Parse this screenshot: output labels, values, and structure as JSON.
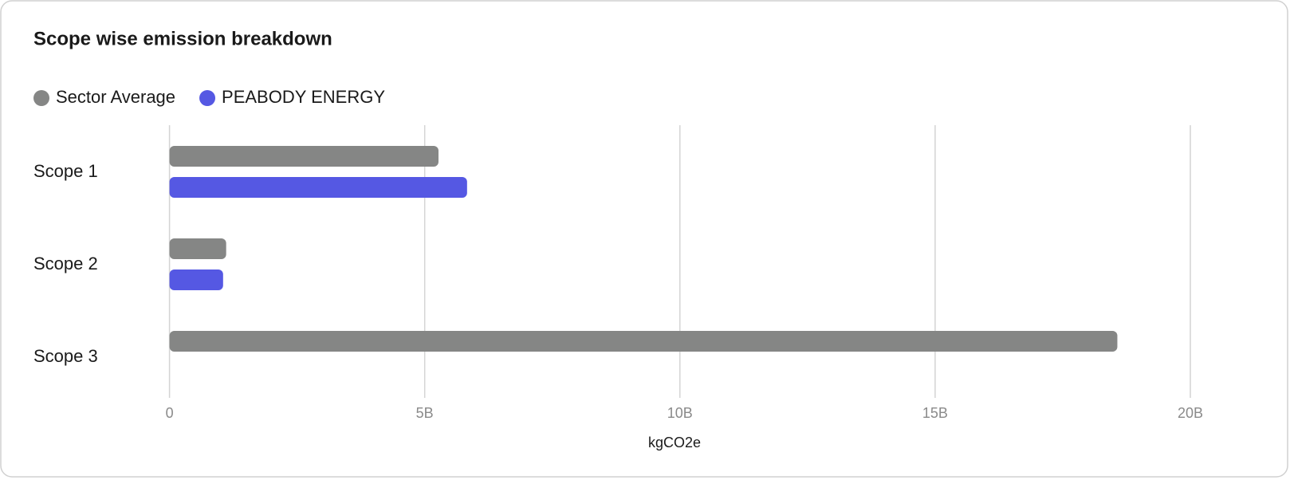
{
  "chart_data": {
    "type": "bar",
    "orientation": "horizontal",
    "title": "Scope wise emission breakdown",
    "categories": [
      "Scope 1",
      "Scope 2",
      "Scope 3"
    ],
    "series": [
      {
        "name": "Sector Average",
        "color": "#858685",
        "values": [
          5270000000,
          1110000000,
          18570000000
        ]
      },
      {
        "name": "PEABODY ENERGY",
        "color": "#5558e3",
        "values": [
          5830000000,
          1050000000,
          null
        ]
      }
    ],
    "xlabel": "kgCO2e",
    "xlim": [
      0,
      20000000000
    ],
    "xticks": [
      0,
      {
        "value": 5000000000,
        "label": "5B"
      },
      {
        "value": 10000000000,
        "label": "10B"
      },
      {
        "value": 15000000000,
        "label": "15B"
      },
      {
        "value": 20000000000,
        "label": "20B"
      }
    ],
    "grid": true
  }
}
